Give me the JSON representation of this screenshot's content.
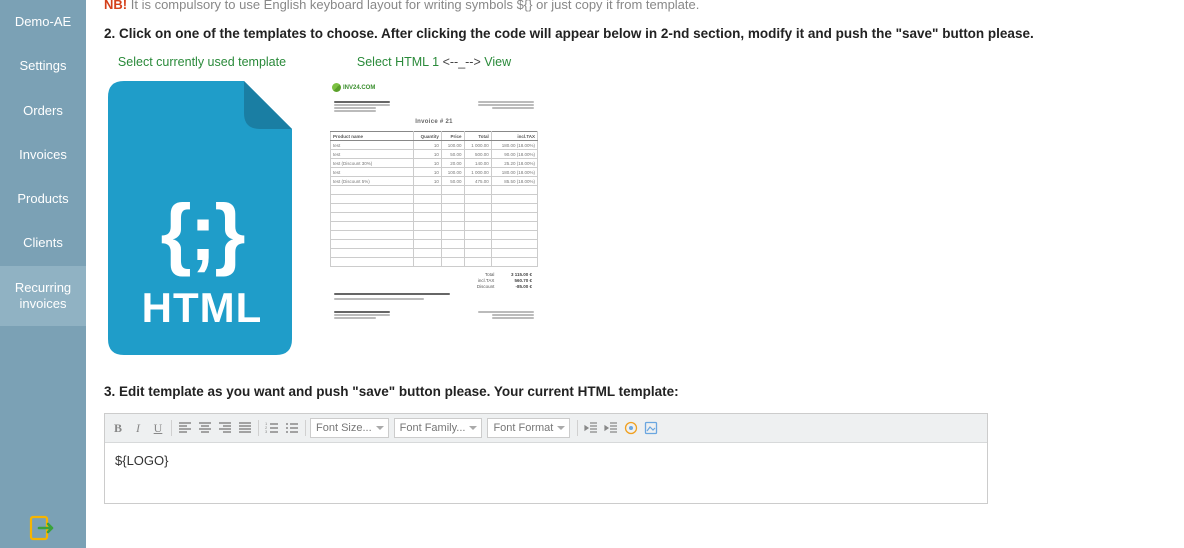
{
  "sidebar": {
    "items": [
      {
        "label": "Demo-AE",
        "active": false
      },
      {
        "label": "Settings",
        "active": false
      },
      {
        "label": "Orders",
        "active": false
      },
      {
        "label": "Invoices",
        "active": false
      },
      {
        "label": "Products",
        "active": false
      },
      {
        "label": "Clients",
        "active": false
      },
      {
        "label": "Recurring invoices",
        "active": true
      }
    ],
    "exit_icon_colors": {
      "box": "#f7b500",
      "arrow": "#3aa23a"
    }
  },
  "nb": {
    "prefix": "NB!",
    "text": "It is compulsory to use English keyboard layout for writing symbols ${} or just copy it from template."
  },
  "steps": {
    "s2": "2. Click on one of the templates to choose. After clicking the code will appear below in 2-nd section, modify it and push the \"save\" button please.",
    "s3": "3. Edit template as you want and push \"save\" button please. Your current HTML template:"
  },
  "templates": {
    "current_label": "Select currently used template",
    "html1_label_a": "Select HTML 1",
    "html1_label_b": "<--_-->",
    "html1_label_c": "View",
    "file_braces": "{;}",
    "file_word": "HTML",
    "file_colors": {
      "body": "#1f9dc9",
      "fold": "#1a7ea3",
      "text": "#ffffff"
    },
    "preview": {
      "logo_text": "INV24.COM",
      "invoice_title": "Invoice # 21",
      "columns": [
        "Product name",
        "Quantity",
        "Price",
        "Total",
        "incl.TAX"
      ],
      "rows": [
        {
          "name": "test",
          "qty": "10",
          "price": "100.00",
          "total": "1 000.00",
          "tax": "180.00 (18.00%)"
        },
        {
          "name": "test",
          "qty": "10",
          "price": "50.00",
          "total": "500.00",
          "tax": "90.00 (18.00%)"
        },
        {
          "name": "test (Discount 30%)",
          "qty": "10",
          "price": "20.00",
          "total": "140.00",
          "tax": "25.20 (18.00%)"
        },
        {
          "name": "test",
          "qty": "10",
          "price": "100.00",
          "total": "1 000.00",
          "tax": "180.00 (18.00%)"
        },
        {
          "name": "test (Discount 5%)",
          "qty": "10",
          "price": "50.00",
          "total": "475.00",
          "tax": "85.50 (18.00%)"
        }
      ],
      "blank_rows": 9,
      "totals": [
        {
          "k": "Total",
          "v": "3 115.00 €"
        },
        {
          "k": "incl.TAX",
          "v": "560.70 €"
        },
        {
          "k": "Discount",
          "v": "-85.00 €"
        }
      ],
      "colors": {
        "grid": "#cccccc",
        "header": "#666666"
      }
    }
  },
  "editor": {
    "toolbar": {
      "bold": "B",
      "italic": "I",
      "underline": "U",
      "font_size": "Font Size...",
      "font_family": "Font Family...",
      "font_format": "Font Format"
    },
    "content": "${LOGO}"
  },
  "colors": {
    "sidebar_bg": "#7ba1b5",
    "sidebar_active_bg": "#90b2c3",
    "green_label": "#2a8a3a",
    "nb_red": "#d43f1a"
  }
}
